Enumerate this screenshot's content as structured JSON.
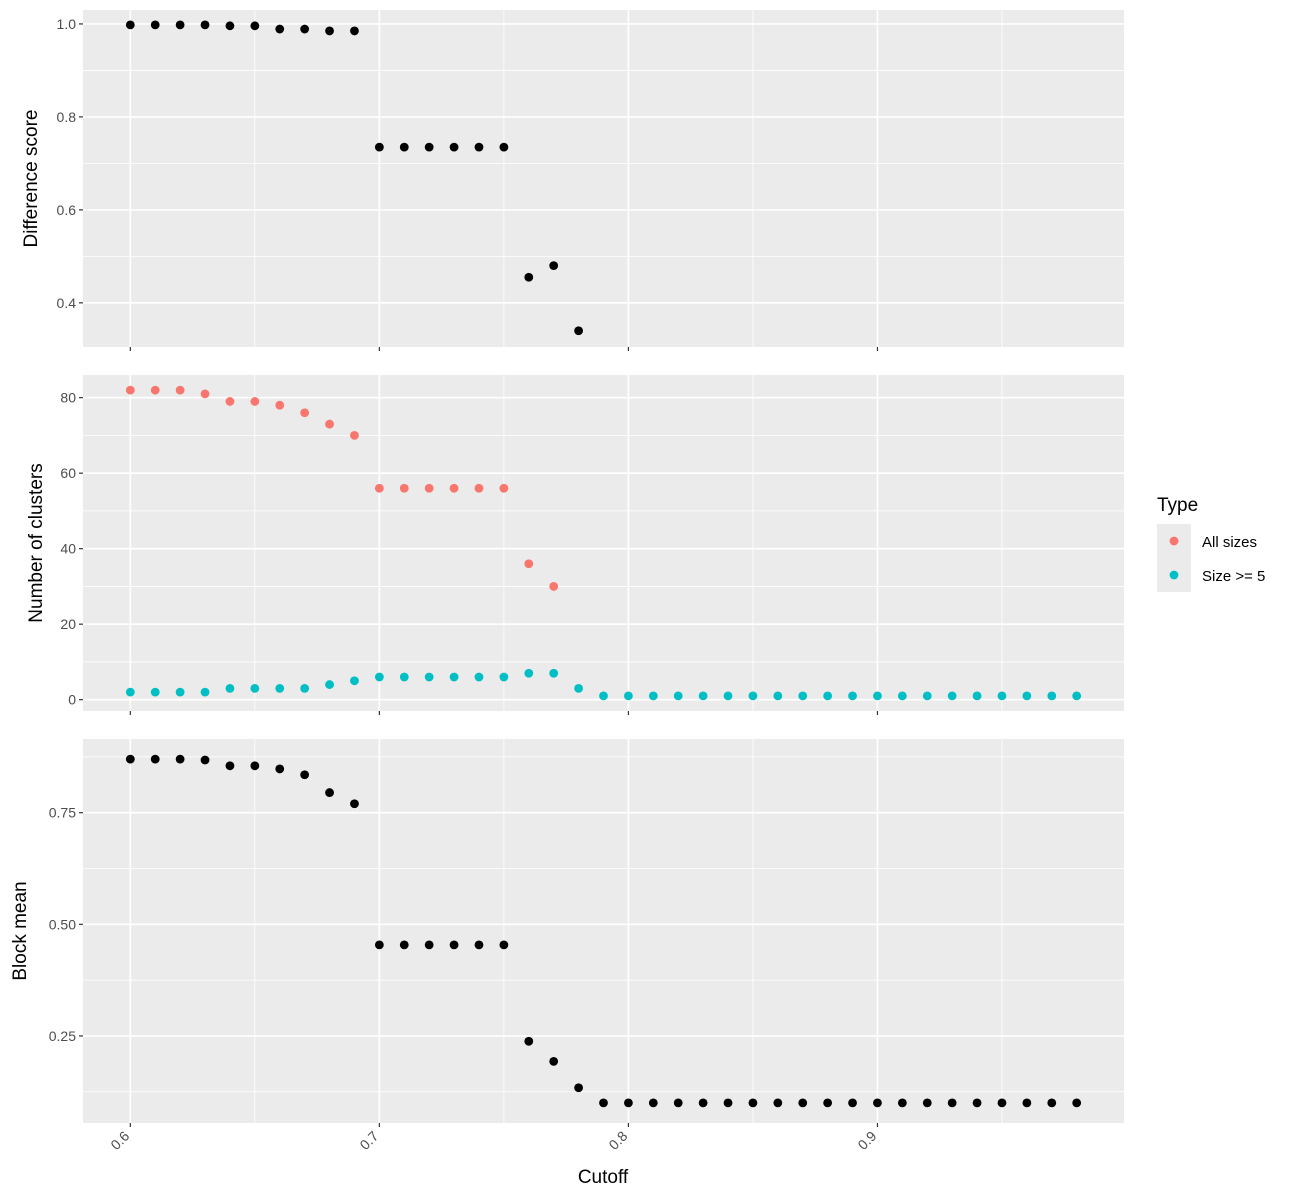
{
  "chart_data": {
    "type": "scatter",
    "xlabel": "Cutoff",
    "x_ticks": [
      0.6,
      0.7,
      0.8,
      0.9
    ],
    "x_tick_labels": [
      "0.6",
      "0.7",
      "0.8",
      "0.9"
    ],
    "xlim": [
      0.581,
      0.999
    ],
    "grid": true,
    "colors": {
      "panel_bg": "#ebebeb",
      "grid": "#ffffff",
      "black": "#000000",
      "all_sizes": "#f8766d",
      "size_ge5": "#00bfc4"
    },
    "legend": {
      "title": "Type",
      "position": "right",
      "entries": [
        {
          "name": "All sizes",
          "color": "#f8766d"
        },
        {
          "name": "Size >= 5",
          "color": "#00bfc4"
        }
      ]
    },
    "panels": [
      {
        "ylabel": "Difference score",
        "ylim": [
          0.305,
          1.03
        ],
        "y_ticks": [
          0.4,
          0.6,
          0.8,
          1.0
        ],
        "y_tick_labels": [
          "0.4",
          "0.6",
          "0.8",
          "1.0"
        ],
        "series": [
          {
            "color": "#000000",
            "x": [
              0.6,
              0.61,
              0.62,
              0.63,
              0.64,
              0.65,
              0.66,
              0.67,
              0.68,
              0.69,
              0.7,
              0.71,
              0.72,
              0.73,
              0.74,
              0.75,
              0.76,
              0.77,
              0.78
            ],
            "y": [
              0.998,
              0.998,
              0.998,
              0.998,
              0.996,
              0.996,
              0.989,
              0.989,
              0.985,
              0.985,
              0.735,
              0.735,
              0.735,
              0.735,
              0.735,
              0.735,
              0.455,
              0.48,
              0.34
            ]
          }
        ]
      },
      {
        "ylabel": "Number of clusters",
        "ylim": [
          -3,
          86
        ],
        "y_ticks": [
          0,
          20,
          40,
          60,
          80
        ],
        "y_tick_labels": [
          "0",
          "20",
          "40",
          "60",
          "80"
        ],
        "series": [
          {
            "name": "All sizes",
            "color": "#f8766d",
            "x": [
              0.6,
              0.61,
              0.62,
              0.63,
              0.64,
              0.65,
              0.66,
              0.67,
              0.68,
              0.69,
              0.7,
              0.71,
              0.72,
              0.73,
              0.74,
              0.75,
              0.76,
              0.77
            ],
            "y": [
              82,
              82,
              82,
              81,
              79,
              79,
              78,
              76,
              73,
              70,
              56,
              56,
              56,
              56,
              56,
              56,
              36,
              30
            ]
          },
          {
            "name": "Size >= 5",
            "color": "#00bfc4",
            "x": [
              0.6,
              0.61,
              0.62,
              0.63,
              0.64,
              0.65,
              0.66,
              0.67,
              0.68,
              0.69,
              0.7,
              0.71,
              0.72,
              0.73,
              0.74,
              0.75,
              0.76,
              0.77,
              0.78,
              0.79,
              0.8,
              0.81,
              0.82,
              0.83,
              0.84,
              0.85,
              0.86,
              0.87,
              0.88,
              0.89,
              0.9,
              0.91,
              0.92,
              0.93,
              0.94,
              0.95,
              0.96,
              0.97,
              0.98
            ],
            "y": [
              2,
              2,
              2,
              2,
              3,
              3,
              3,
              3,
              4,
              5,
              6,
              6,
              6,
              6,
              6,
              6,
              7,
              7,
              3,
              1,
              1,
              1,
              1,
              1,
              1,
              1,
              1,
              1,
              1,
              1,
              1,
              1,
              1,
              1,
              1,
              1,
              1,
              1,
              1
            ]
          }
        ]
      },
      {
        "ylabel": "Block mean",
        "ylim": [
          0.055,
          0.915
        ],
        "y_ticks": [
          0.25,
          0.5,
          0.75
        ],
        "y_tick_labels": [
          "0.25",
          "0.50",
          "0.75"
        ],
        "series": [
          {
            "color": "#000000",
            "x": [
              0.6,
              0.61,
              0.62,
              0.63,
              0.64,
              0.65,
              0.66,
              0.67,
              0.68,
              0.69,
              0.7,
              0.71,
              0.72,
              0.73,
              0.74,
              0.75,
              0.76,
              0.77,
              0.78,
              0.79,
              0.8,
              0.81,
              0.82,
              0.83,
              0.84,
              0.85,
              0.86,
              0.87,
              0.88,
              0.89,
              0.9,
              0.91,
              0.92,
              0.93,
              0.94,
              0.95,
              0.96,
              0.97,
              0.98
            ],
            "y": [
              0.87,
              0.87,
              0.87,
              0.868,
              0.855,
              0.855,
              0.848,
              0.835,
              0.795,
              0.77,
              0.454,
              0.454,
              0.454,
              0.454,
              0.454,
              0.454,
              0.238,
              0.193,
              0.134,
              0.1,
              0.1,
              0.1,
              0.1,
              0.1,
              0.1,
              0.1,
              0.1,
              0.1,
              0.1,
              0.1,
              0.1,
              0.1,
              0.1,
              0.1,
              0.1,
              0.1,
              0.1,
              0.1,
              0.1
            ]
          }
        ]
      }
    ]
  }
}
